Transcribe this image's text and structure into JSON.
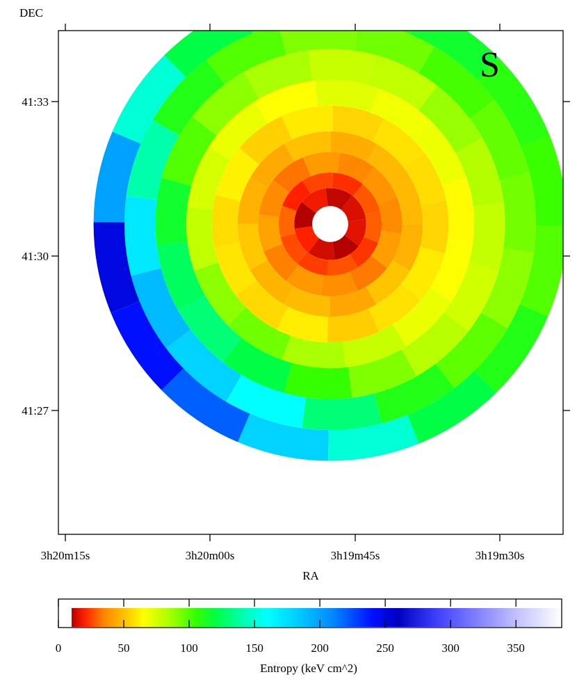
{
  "chart_data": {
    "type": "heatmap",
    "panel_label": "S",
    "xlabel": "RA",
    "ylabel": "DEC",
    "x_ticks": [
      "3h20m15s",
      "3h20m00s",
      "3h19m45s",
      "3h19m30s"
    ],
    "y_ticks": [
      "41:33",
      "41:30",
      "41:27"
    ],
    "colorbar": {
      "label": "Entropy (keV cm^2)",
      "range": [
        0,
        385
      ],
      "ticks": [
        "0",
        "50",
        "100",
        "150",
        "200",
        "250",
        "300",
        "350"
      ],
      "tick_values": [
        0,
        50,
        100,
        150,
        200,
        250,
        300,
        350
      ],
      "colormap": [
        [
          10,
          "#b30000"
        ],
        [
          20,
          "#ff2000"
        ],
        [
          35,
          "#ff8800"
        ],
        [
          50,
          "#ffc000"
        ],
        [
          65,
          "#ffff00"
        ],
        [
          85,
          "#aaff00"
        ],
        [
          105,
          "#33ff00"
        ],
        [
          120,
          "#00ff44"
        ],
        [
          140,
          "#00ffaa"
        ],
        [
          160,
          "#00ffff"
        ],
        [
          185,
          "#00c8ff"
        ],
        [
          210,
          "#0088ff"
        ],
        [
          240,
          "#0010ff"
        ],
        [
          260,
          "#0000c0"
        ],
        [
          290,
          "#4040ff"
        ],
        [
          320,
          "#8080ff"
        ],
        [
          350,
          "#c0c0ff"
        ],
        [
          385,
          "#ffffff"
        ]
      ]
    },
    "entropy_profile": {
      "description_units": "radius in arcmin from center, entropy in keV cm^2",
      "center_ra": "3h19m48s",
      "center_dec": "41:30:35",
      "rings": [
        {
          "r": [
            0.0,
            0.35
          ],
          "values": [
            null
          ]
        },
        {
          "r": [
            0.35,
            0.7
          ],
          "values": [
            15,
            12,
            18,
            10,
            20,
            14,
            8,
            16
          ]
        },
        {
          "r": [
            0.7,
            1.0
          ],
          "values": [
            28,
            22,
            25,
            20,
            30,
            26,
            24,
            27,
            23,
            29
          ]
        },
        {
          "r": [
            1.0,
            1.4
          ],
          "values": [
            38,
            35,
            40,
            32,
            36,
            42,
            34,
            39,
            37,
            33,
            41,
            36
          ]
        },
        {
          "r": [
            1.4,
            1.8
          ],
          "values": [
            48,
            45,
            50,
            44,
            46,
            52,
            47,
            49,
            43,
            51,
            46,
            48
          ]
        },
        {
          "r": [
            1.8,
            2.3
          ],
          "values": [
            58,
            55,
            60,
            54,
            62,
            57,
            59,
            56,
            61,
            53,
            58,
            60,
            55,
            57
          ]
        },
        {
          "r": [
            2.3,
            2.8
          ],
          "values": [
            68,
            72,
            65,
            70,
            75,
            80,
            90,
            95,
            85,
            78,
            70,
            66,
            64,
            69
          ]
        },
        {
          "r": [
            2.8,
            3.4
          ],
          "values": [
            80,
            78,
            85,
            90,
            100,
            115,
            125,
            130,
            120,
            105,
            92,
            82,
            76,
            79,
            83,
            88
          ]
        },
        {
          "r": [
            3.4,
            4.0
          ],
          "values": [
            95,
            92,
            100,
            110,
            140,
            170,
            190,
            180,
            160,
            130,
            110,
            98,
            90,
            94,
            97,
            102
          ]
        },
        {
          "r": [
            4.0,
            4.6
          ],
          "values": [
            105,
            100,
            120,
            150,
            200,
            250,
            240,
            220,
            180,
            150,
            120,
            110,
            100,
            104,
            108,
            115
          ]
        }
      ]
    }
  }
}
